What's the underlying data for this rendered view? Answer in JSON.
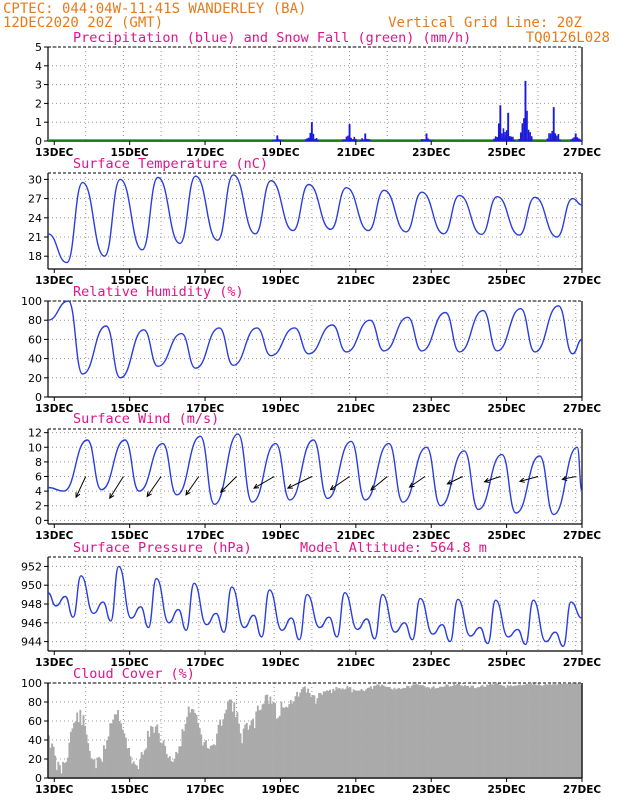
{
  "header": {
    "station": "CPTEC:  044:04W-11:41S  WANDERLEY (BA)",
    "run_time": "12DEC2020 20Z (GMT)",
    "grid_note": "Vertical Grid Line: 20Z",
    "code": "TQ0126L028"
  },
  "colors": {
    "header": "#e87a1a",
    "title": "#e0148c",
    "precip": "#1a1adc",
    "snow": "#1aa81a",
    "line": "#2a3ee0",
    "cloud": "#aaaaaa"
  },
  "x_axis": {
    "start": "12DEC2020 20Z",
    "end": "27DEC2020 00Z",
    "tick_labels": [
      "13DEC",
      "15DEC",
      "17DEC",
      "19DEC",
      "21DEC",
      "23DEC",
      "25DEC",
      "27DEC"
    ],
    "tick_days": [
      13,
      15,
      17,
      19,
      21,
      23,
      25,
      27
    ]
  },
  "chart_data": [
    {
      "id": "precip",
      "type": "bar",
      "title": "Precipitation (blue) and Snow Fall (green) (mm/h)",
      "ylim": [
        0,
        5
      ],
      "yticks": [
        0,
        1,
        2,
        3,
        4,
        5
      ],
      "grid": true,
      "x": [
        "18DEC 22Z",
        "19DEC 20Z",
        "20DEC 20Z",
        "21DEC 06Z",
        "22DEC 21Z",
        "24DEC 20Z",
        "25DEC 01Z",
        "25DEC 12Z",
        "26DEC 06Z",
        "26DEC 20Z"
      ],
      "series": [
        {
          "name": "Precipitation",
          "values": [
            0.3,
            1.0,
            0.9,
            0.4,
            0.4,
            1.9,
            1.5,
            3.2,
            1.8,
            0.4
          ]
        },
        {
          "name": "Snow Fall",
          "values": [
            0,
            0,
            0,
            0,
            0,
            0,
            0,
            0,
            0,
            0
          ]
        }
      ]
    },
    {
      "id": "temp",
      "type": "line",
      "title": "Surface Temperature (nC)",
      "ylim": [
        16,
        31
      ],
      "yticks": [
        18,
        21,
        24,
        27,
        30
      ],
      "grid": true,
      "daily_max": [
        29.5,
        30.0,
        30.3,
        30.5,
        30.7,
        29.8,
        29.2,
        28.7,
        28.3,
        28.0,
        27.5,
        27.3,
        27.2,
        27.0,
        28.5
      ],
      "daily_min": [
        17.0,
        18.0,
        19.0,
        20.0,
        20.5,
        21.5,
        22.0,
        22.2,
        22.0,
        21.8,
        21.5,
        21.4,
        21.3,
        21.0,
        22.0
      ],
      "start": 21.5,
      "end": 26.0
    },
    {
      "id": "rh",
      "type": "line",
      "title": "Relative Humidity (%)",
      "ylim": [
        0,
        100
      ],
      "yticks": [
        0,
        20,
        40,
        60,
        80,
        100
      ],
      "grid": true,
      "daily_max": [
        100,
        74,
        70,
        66,
        72,
        72,
        72,
        75,
        80,
        83,
        88,
        90,
        92,
        95,
        97
      ],
      "daily_min": [
        24,
        20,
        32,
        30,
        33,
        43,
        45,
        47,
        48,
        48,
        47,
        48,
        47,
        45,
        42
      ],
      "start": 80,
      "end": 60
    },
    {
      "id": "wind",
      "type": "line",
      "title": "Surface Wind (m/s)",
      "ylim": [
        -0.5,
        12.5
      ],
      "yticks": [
        0,
        2,
        4,
        6,
        8,
        10,
        12
      ],
      "grid": true,
      "daily_max": [
        11.0,
        11.0,
        10.5,
        11.5,
        11.8,
        10.5,
        11.0,
        10.8,
        10.5,
        10.0,
        9.5,
        9.0,
        8.8,
        10.0,
        10.5
      ],
      "daily_min": [
        4.0,
        4.2,
        4.0,
        3.5,
        2.2,
        2.5,
        2.8,
        3.0,
        2.8,
        2.5,
        2.0,
        1.5,
        1.0,
        0.8,
        1.5
      ],
      "start": 4.5,
      "end": 4.0,
      "barb_length": [
        6.5,
        7.0,
        6.5,
        6.0,
        5.5,
        5.0,
        5.5,
        5.2,
        5.0,
        4.2,
        3.5,
        3.2,
        3.5,
        2.5,
        2.0
      ],
      "barb_direction": [
        75,
        70,
        68,
        68,
        60,
        45,
        40,
        50,
        55,
        50,
        40,
        30,
        25,
        20,
        20
      ]
    },
    {
      "id": "pres",
      "type": "line",
      "title": "Surface Pressure (hPa)",
      "subtitle": "Model Altitude: 564.8 m",
      "ylim": [
        943,
        953
      ],
      "yticks": [
        944,
        946,
        948,
        950,
        952
      ],
      "grid": true,
      "start": 949.2,
      "end": 946.5,
      "primary_max": [
        951.0,
        952.0,
        950.7,
        950.2,
        949.8,
        949.5,
        949.0,
        949.2,
        949.0,
        948.6,
        948.5,
        948.4,
        948.4,
        948.2
      ],
      "secondary_max": [
        948.8,
        948.2,
        947.7,
        947.4,
        947.0,
        946.8,
        946.5,
        946.6,
        946.4,
        946.0,
        945.8,
        945.5,
        945.3,
        945.0
      ],
      "min_a": [
        946.6,
        946.2,
        945.5,
        945.2,
        945.0,
        944.5,
        944.2,
        944.5,
        944.3,
        944.2,
        944.0,
        943.8,
        943.7,
        943.5
      ],
      "min_b": [
        947.8,
        947.0,
        946.5,
        946.0,
        945.8,
        945.5,
        945.2,
        945.5,
        945.3,
        945.0,
        944.8,
        944.6,
        944.5,
        944.0
      ]
    },
    {
      "id": "cloud",
      "type": "bar",
      "title": "Cloud Cover (%)",
      "ylim": [
        0,
        100
      ],
      "yticks": [
        0,
        20,
        40,
        60,
        80,
        100
      ],
      "grid": true,
      "daily_base": [
        20,
        20,
        22,
        20,
        25,
        38,
        60,
        82,
        92,
        95,
        96,
        97,
        97,
        98,
        99
      ],
      "daily_amplitude": [
        60,
        55,
        55,
        40,
        55,
        50,
        35,
        15,
        6,
        4,
        3,
        3,
        3,
        2,
        1
      ],
      "daily_min_spread": [
        20,
        20,
        15,
        15,
        12,
        15,
        18,
        10,
        5,
        4,
        3,
        3,
        3,
        2,
        1
      ]
    }
  ]
}
